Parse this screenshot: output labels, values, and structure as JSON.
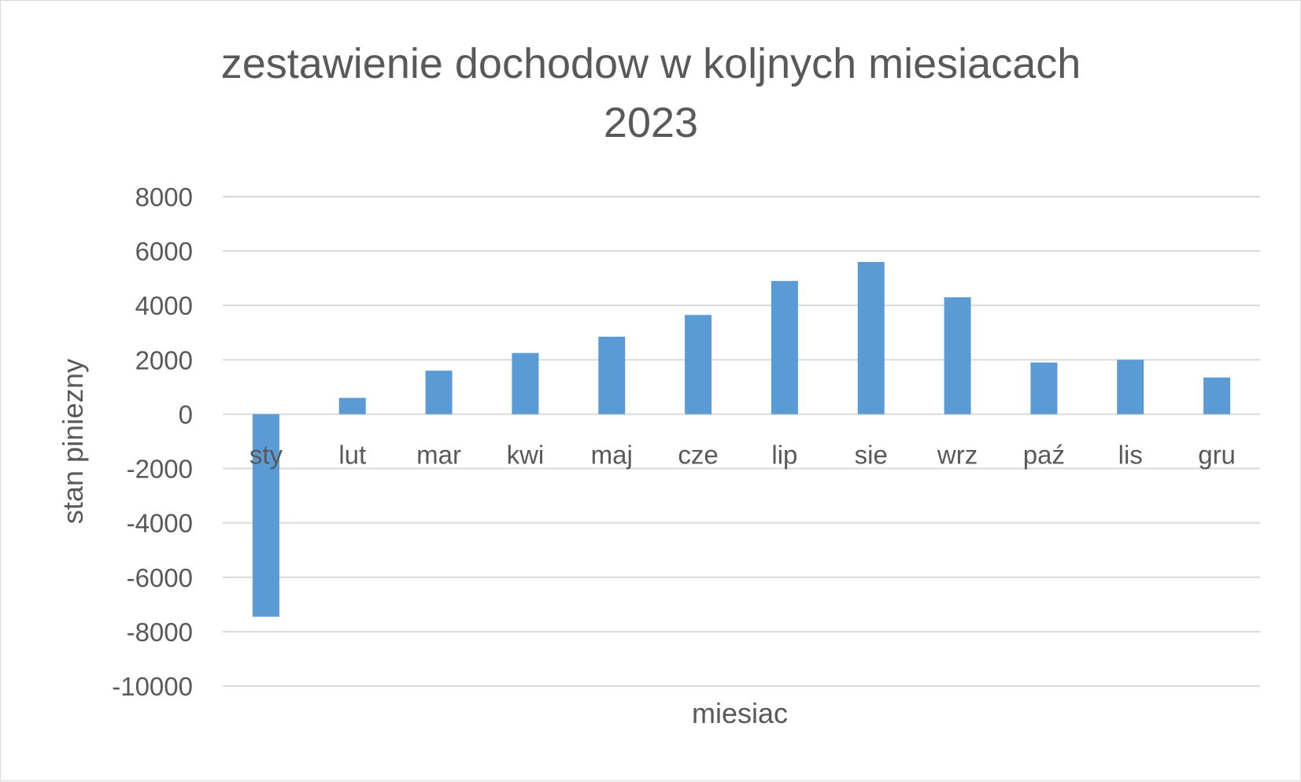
{
  "chart_data": {
    "type": "bar",
    "title": "zestawienie dochodow w koljnych miesiacach 2023",
    "title_lines": [
      "zestawienie dochodow w koljnych miesiacach",
      "2023"
    ],
    "xlabel": "miesiac",
    "ylabel": "stan piniezny",
    "categories": [
      "sty",
      "lut",
      "mar",
      "kwi",
      "maj",
      "cze",
      "lip",
      "sie",
      "wrz",
      "paź",
      "lis",
      "gru"
    ],
    "values": [
      -7450,
      600,
      1600,
      2250,
      2850,
      3650,
      4900,
      5600,
      4300,
      1900,
      2000,
      1350
    ],
    "ylim": [
      -10000,
      8000
    ],
    "yticks": [
      8000,
      6000,
      4000,
      2000,
      0,
      -2000,
      -4000,
      -6000,
      -8000,
      -10000
    ],
    "grid": true,
    "legend": "none",
    "bar_color": "#5B9BD5"
  }
}
